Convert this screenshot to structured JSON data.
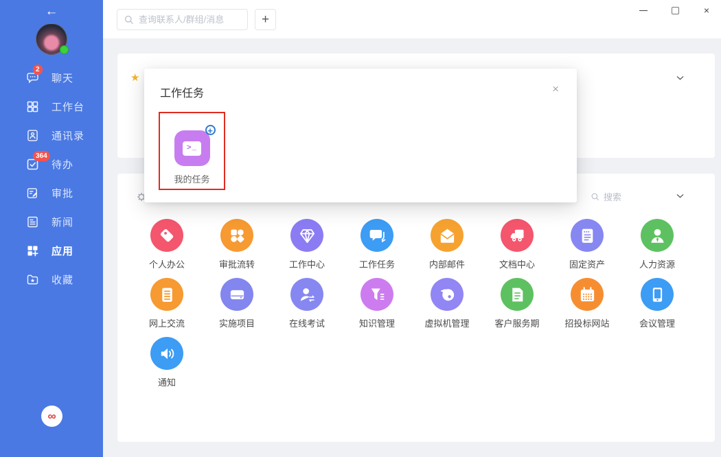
{
  "colors": {
    "sidebar_bg": "#4a79e3",
    "badge": "#f4534e",
    "accent_green": "#3dd13d",
    "annotation": "#e02b20",
    "logo_red": "#e03a3a"
  },
  "window_controls": {
    "minimize": "minimize",
    "maximize": "maximize",
    "close": "×"
  },
  "sidebar": {
    "back_icon": "←",
    "logo_glyph": "∞",
    "items": [
      {
        "label": "聊天",
        "icon": "chat-icon",
        "badge": "2",
        "active": false
      },
      {
        "label": "工作台",
        "icon": "workbench-icon",
        "badge": "",
        "active": false
      },
      {
        "label": "通讯录",
        "icon": "contacts-icon",
        "badge": "",
        "active": false
      },
      {
        "label": "待办",
        "icon": "todo-icon",
        "badge": "364",
        "active": false
      },
      {
        "label": "审批",
        "icon": "approval-icon",
        "badge": "",
        "active": false
      },
      {
        "label": "新闻",
        "icon": "news-icon",
        "badge": "",
        "active": false
      },
      {
        "label": "应用",
        "icon": "apps-icon",
        "badge": "",
        "active": true
      },
      {
        "label": "收藏",
        "icon": "favorites-icon",
        "badge": "",
        "active": false
      }
    ]
  },
  "topbar": {
    "search_placeholder": "查询联系人/群组/消息",
    "add_button": "+"
  },
  "favorites_card": {
    "star_icon": "★"
  },
  "apps_card": {
    "search_label": "搜索"
  },
  "modal": {
    "title": "工作任务",
    "close_icon": "×",
    "item": {
      "label": "我的任务",
      "icon": "terminal-icon",
      "glyph": ">_",
      "color": "#c77df0",
      "badge": "+"
    }
  },
  "apps": [
    {
      "label": "个人办公",
      "icon": "tag-icon",
      "color": "#f4566d"
    },
    {
      "label": "审批流转",
      "icon": "flower-grid-icon",
      "color": "#f69a31"
    },
    {
      "label": "工作中心",
      "icon": "gem-icon",
      "color": "#8b7cf4"
    },
    {
      "label": "工作任务",
      "icon": "chat-double-icon",
      "color": "#3d9cf4"
    },
    {
      "label": "内部邮件",
      "icon": "envelope-icon",
      "color": "#f6a231"
    },
    {
      "label": "文档中心",
      "icon": "truck-icon",
      "color": "#f4566d"
    },
    {
      "label": "固定资产",
      "icon": "note-icon",
      "color": "#8787f2"
    },
    {
      "label": "人力资源",
      "icon": "person-icon",
      "color": "#5ec161"
    },
    {
      "label": "网上交流",
      "icon": "list-icon",
      "color": "#f69a31"
    },
    {
      "label": "实施项目",
      "icon": "drive-icon",
      "color": "#8286ee"
    },
    {
      "label": "在线考试",
      "icon": "person-arrows-icon",
      "color": "#8787f2"
    },
    {
      "label": "知识管理",
      "icon": "funnel-icon",
      "color": "#cd7cf0"
    },
    {
      "label": "虚拟机管理",
      "icon": "wallet-icon",
      "color": "#9186f4"
    },
    {
      "label": "客户服务期",
      "icon": "doc-icon",
      "color": "#5ec161"
    },
    {
      "label": "招投标网站",
      "icon": "calendar-icon",
      "color": "#f68e31"
    },
    {
      "label": "会议管理",
      "icon": "phone-icon",
      "color": "#3d9cf4"
    },
    {
      "label": "通知",
      "icon": "speaker-icon",
      "color": "#3d9cf4"
    }
  ]
}
